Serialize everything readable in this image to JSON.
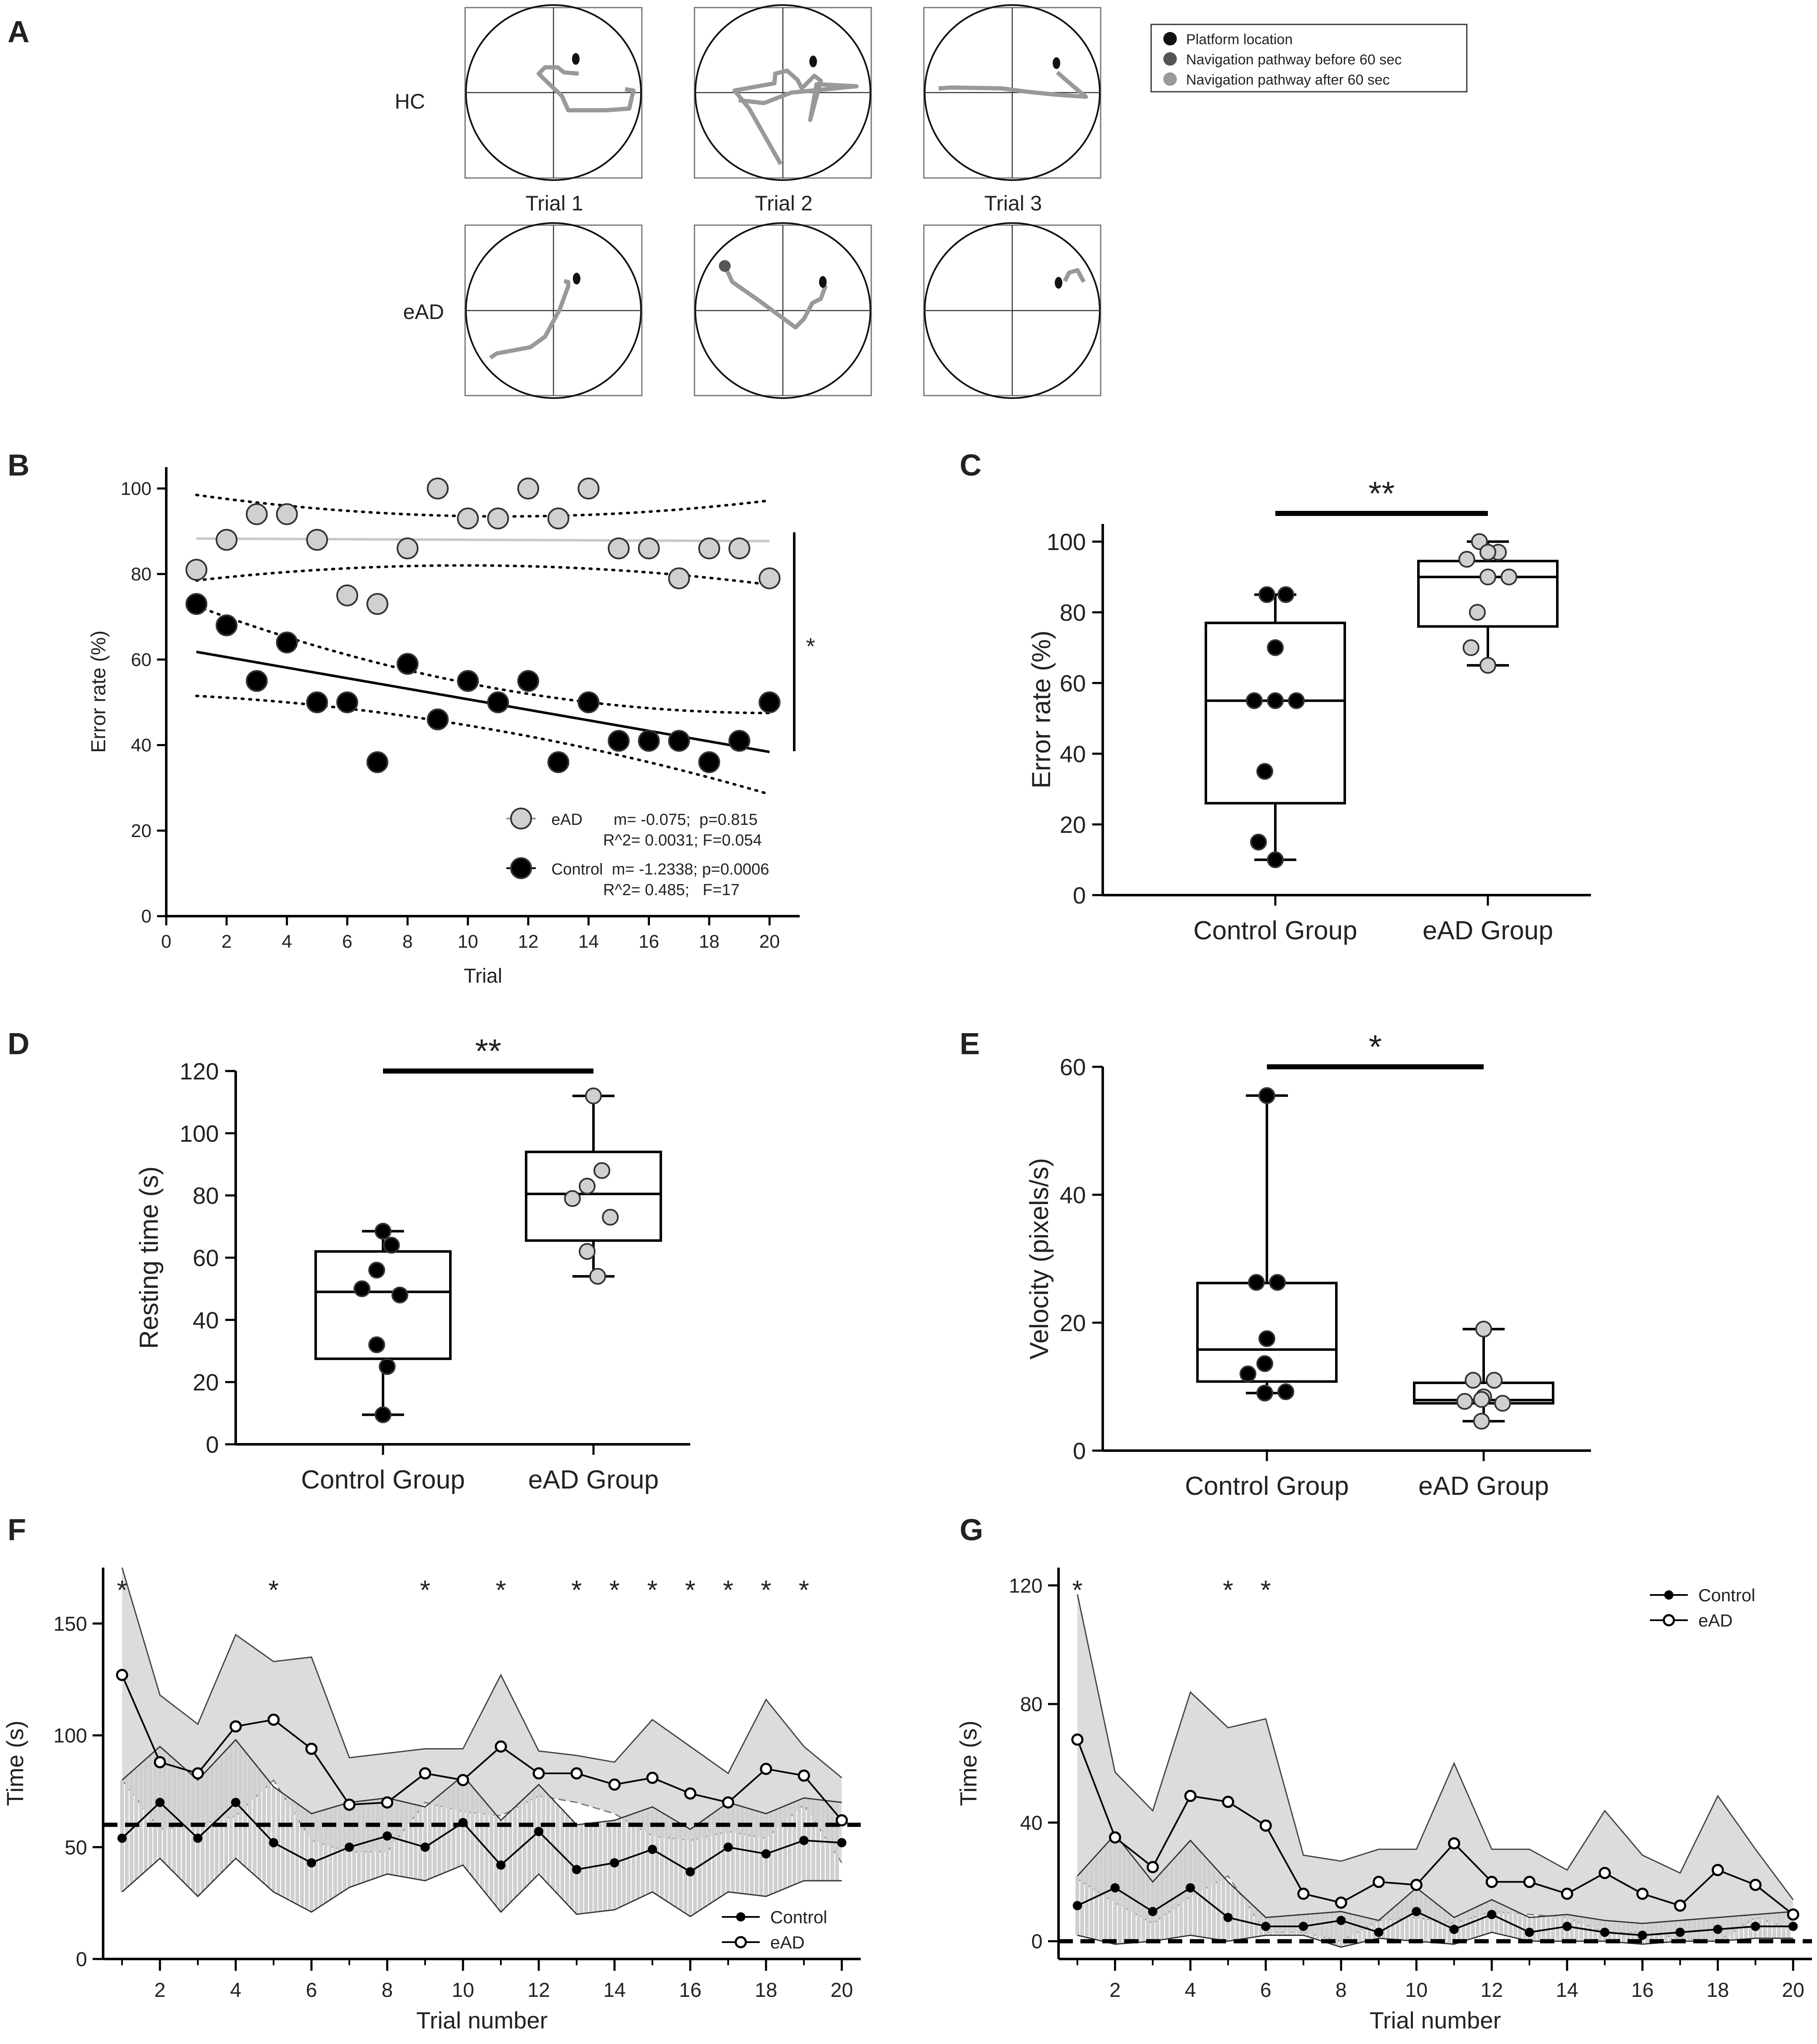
{
  "panel_letters": [
    "A",
    "B",
    "C",
    "D",
    "E",
    "F",
    "G"
  ],
  "panel_a": {
    "row_labels": [
      "HC",
      "eAD"
    ],
    "trial_labels": [
      "Trial 1",
      "Trial 2",
      "Trial 3"
    ],
    "legend": [
      "Platform location",
      "Navigation pathway before 60 sec",
      "Navigation pathway after 60 sec"
    ],
    "colors": {
      "platform": "#111111",
      "before": "#555555",
      "after": "#999999"
    }
  },
  "chart_data": [
    {
      "id": "B",
      "type": "scatter",
      "xlabel": "Trial",
      "ylabel": "Error rate (%)",
      "xlim": [
        0,
        21
      ],
      "ylim": [
        0,
        105
      ],
      "xticks": [
        0,
        2,
        4,
        6,
        8,
        10,
        12,
        14,
        16,
        18,
        20
      ],
      "yticks": [
        0,
        20,
        40,
        60,
        80,
        100
      ],
      "series": [
        {
          "name": "eAD",
          "color": "#d0d0d0",
          "x": [
            1,
            2,
            3,
            4,
            5,
            6,
            7,
            8,
            9,
            10,
            11,
            12,
            13,
            14,
            15,
            16,
            17,
            18,
            19,
            20
          ],
          "y": [
            81,
            88,
            94,
            94,
            88,
            75,
            73,
            86,
            100,
            93,
            93,
            100,
            93,
            100,
            86,
            86,
            79,
            86,
            86,
            79
          ],
          "fit": [
            88.3,
            87.7
          ],
          "ci_upper": [
            98.5,
            93.5,
            97.2
          ],
          "ci_lower": [
            78.5,
            82,
            77.5
          ],
          "stat_line1": "eAD       m= -0.075;  p=0.815",
          "stat_line2": "R^2= 0.0031; F=0.054"
        },
        {
          "name": "Control",
          "color": "#000000",
          "x": [
            1,
            2,
            3,
            4,
            5,
            6,
            7,
            8,
            9,
            10,
            11,
            12,
            13,
            14,
            15,
            16,
            17,
            18,
            19,
            20
          ],
          "y": [
            73,
            68,
            55,
            64,
            50,
            50,
            36,
            59,
            46,
            55,
            50,
            55,
            36,
            50,
            41,
            41,
            41,
            36,
            41,
            50
          ],
          "fit": [
            61.8,
            38.4
          ],
          "ci_upper": [
            72.5,
            53.8,
            47.5
          ],
          "ci_lower": [
            51.5,
            44,
            28.5
          ],
          "stat_line1": "Control  m= -1.2338; p=0.0006",
          "stat_line2": "R^2= 0.485;   F=17"
        }
      ],
      "significance": "*"
    },
    {
      "id": "C",
      "type": "box",
      "ylabel": "Error rate (%)",
      "ylim": [
        0,
        105
      ],
      "yticks": [
        0,
        20,
        40,
        60,
        80,
        100
      ],
      "categories": [
        "Control Group",
        "eAD Group"
      ],
      "boxes": [
        {
          "min": 10,
          "q1": 26,
          "median": 55,
          "q3": 77,
          "max": 85,
          "color": "#000000",
          "points": [
            85,
            85,
            70,
            55,
            55,
            55,
            35,
            15,
            10
          ]
        },
        {
          "min": 65,
          "q1": 76,
          "median": 90,
          "q3": 94.5,
          "max": 100,
          "color": "#d0d0d0",
          "points": [
            100,
            97,
            97,
            95,
            90,
            90,
            80,
            70,
            65
          ]
        }
      ],
      "significance": "**"
    },
    {
      "id": "D",
      "type": "box",
      "ylabel": "Resting time (s)",
      "ylim": [
        0,
        120
      ],
      "yticks": [
        0,
        20,
        40,
        60,
        80,
        100,
        120
      ],
      "categories": [
        "Control Group",
        "eAD Group"
      ],
      "boxes": [
        {
          "min": 9.5,
          "q1": 27.5,
          "median": 49,
          "q3": 62,
          "max": 68.5,
          "color": "#000000",
          "points": [
            68.5,
            64,
            56,
            50,
            48,
            32,
            25,
            9.5
          ]
        },
        {
          "min": 54,
          "q1": 65.5,
          "median": 80.5,
          "q3": 94,
          "max": 112,
          "color": "#d0d0d0",
          "points": [
            112,
            88,
            83,
            79,
            73,
            62,
            54
          ]
        }
      ],
      "significance": "**"
    },
    {
      "id": "E",
      "type": "box",
      "ylabel": "Velocity (pixels/s)",
      "ylim": [
        0,
        60
      ],
      "yticks": [
        0,
        20,
        40,
        60
      ],
      "categories": [
        "Control Group",
        "eAD Group"
      ],
      "boxes": [
        {
          "min": 9,
          "q1": 10.8,
          "median": 15.8,
          "q3": 26.2,
          "max": 55.5,
          "color": "#000000",
          "points": [
            55.5,
            26.3,
            26.3,
            17.5,
            13.6,
            12,
            9.2,
            9
          ]
        },
        {
          "min": 4.6,
          "q1": 7.4,
          "median": 7.9,
          "q3": 10.6,
          "max": 19,
          "color": "#d0d0d0",
          "points": [
            19,
            11,
            11,
            8.4,
            8,
            7.7,
            7.4,
            4.6
          ]
        }
      ],
      "significance": "*"
    },
    {
      "id": "F",
      "type": "line",
      "xlabel": "Trial number",
      "ylabel": "Time (s)",
      "xlim": [
        0.5,
        20.5
      ],
      "ylim": [
        0,
        175
      ],
      "xticks": [
        2,
        4,
        6,
        8,
        10,
        12,
        14,
        16,
        18,
        20
      ],
      "yticks": [
        0,
        50,
        100,
        150
      ],
      "x": [
        1,
        2,
        3,
        4,
        5,
        6,
        7,
        8,
        9,
        10,
        11,
        12,
        13,
        14,
        15,
        16,
        17,
        18,
        19,
        20
      ],
      "series": [
        {
          "name": "Control",
          "marker": "filled",
          "values": [
            54,
            70,
            54,
            70,
            52,
            43,
            50,
            55,
            50,
            61,
            42,
            57,
            40,
            43,
            49,
            39,
            50,
            47,
            53,
            52
          ],
          "band_upper": [
            80,
            95,
            80,
            98,
            77,
            65,
            70,
            72,
            68,
            82,
            62,
            78,
            60,
            62,
            68,
            58,
            70,
            65,
            72,
            70
          ],
          "band_lower": [
            30,
            45,
            28,
            45,
            30,
            21,
            32,
            38,
            35,
            42,
            21,
            38,
            20,
            22,
            30,
            19,
            30,
            28,
            35,
            35
          ]
        },
        {
          "name": "eAD",
          "marker": "open",
          "values": [
            127,
            88,
            83,
            104,
            107,
            94,
            69,
            70,
            83,
            80,
            95,
            83,
            83,
            78,
            81,
            74,
            70,
            85,
            82,
            62
          ],
          "band_upper": [
            175,
            118,
            105,
            145,
            133,
            135,
            90,
            92,
            94,
            94,
            127,
            93,
            91,
            88,
            107,
            95,
            83,
            116,
            95,
            81
          ],
          "band_lower": [
            80,
            58,
            60,
            64,
            80,
            53,
            48,
            48,
            70,
            66,
            64,
            73,
            70,
            65,
            55,
            53,
            57,
            54,
            69,
            43
          ]
        }
      ],
      "threshold": 60,
      "significance_x": [
        1,
        5,
        9,
        11,
        13,
        14,
        15,
        16,
        17,
        18,
        19
      ],
      "significance_mark": "*"
    },
    {
      "id": "G",
      "type": "line",
      "xlabel": "Trial number",
      "ylabel": "Time (s)",
      "xlim": [
        0.5,
        20.5
      ],
      "ylim": [
        -6,
        126
      ],
      "xticks": [
        2,
        4,
        6,
        8,
        10,
        12,
        14,
        16,
        18,
        20
      ],
      "yticks": [
        0,
        40,
        80,
        120
      ],
      "x": [
        1,
        2,
        3,
        4,
        5,
        6,
        7,
        8,
        9,
        10,
        11,
        12,
        13,
        14,
        15,
        16,
        17,
        18,
        19,
        20
      ],
      "series": [
        {
          "name": "Control",
          "marker": "filled",
          "values": [
            12,
            18,
            10,
            18,
            8,
            5,
            5,
            7,
            3,
            10,
            4,
            9,
            3,
            5,
            3,
            2,
            3,
            4,
            5,
            5
          ],
          "band_upper": [
            22,
            36,
            20,
            34,
            20,
            8,
            9,
            10,
            7,
            18,
            8,
            14,
            8,
            9,
            7,
            6,
            7,
            8,
            9,
            10
          ],
          "band_lower": [
            2,
            -1,
            0,
            2,
            0,
            2,
            2,
            -2,
            1,
            0,
            -1,
            3,
            0,
            0,
            0,
            -1,
            0,
            0,
            1,
            1
          ]
        },
        {
          "name": "eAD",
          "marker": "open",
          "values": [
            68,
            35,
            25,
            49,
            47,
            39,
            16,
            13,
            20,
            19,
            33,
            20,
            20,
            16,
            23,
            16,
            12,
            24,
            19,
            9
          ],
          "band_upper": [
            117,
            57,
            44,
            84,
            72,
            75,
            29,
            27,
            31,
            31,
            60,
            31,
            31,
            24,
            44,
            29,
            23,
            49,
            31,
            14
          ],
          "band_lower": [
            21,
            13,
            6,
            15,
            22,
            3,
            3,
            0,
            7,
            8,
            6,
            10,
            9,
            8,
            3,
            3,
            1,
            0,
            8,
            4
          ]
        }
      ],
      "threshold": 0,
      "significance_x": [
        1,
        5,
        6
      ],
      "significance_mark": "*"
    }
  ]
}
